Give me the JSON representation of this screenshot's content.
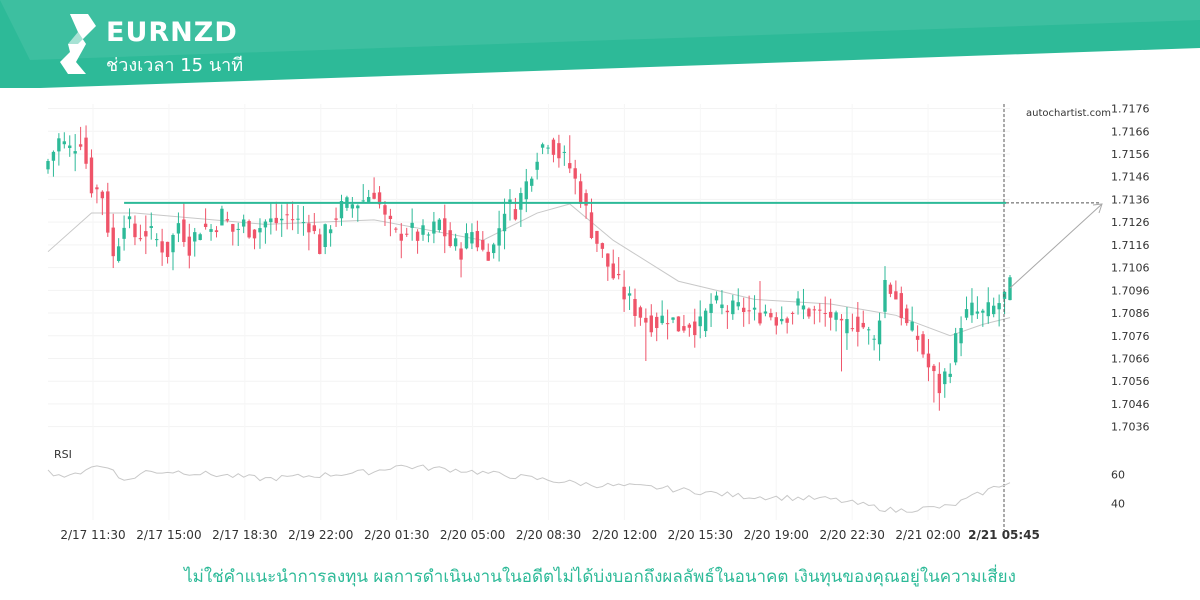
{
  "header": {
    "symbol": "EURNZD",
    "interval_label": "ช่วงเวลา 15 นาที",
    "band_color": "#2dba98"
  },
  "watermark": "autochartist.com",
  "disclaimer": "ไม่ใช่คำแนะนำการลงทุน ผลการดำเนินงานในอดีตไม่ได้บ่งบอกถึงผลลัพธ์ในอนาคต เงินทุนของคุณอยู่ในความเสี่ยง",
  "colors": {
    "up": "#2dba98",
    "down": "#ef5469",
    "level_line": "#2dba98",
    "moving_average": "#c8c8c8",
    "rsi": "#c8c8c8",
    "projection": "#a8a8a8"
  },
  "chart_data": {
    "type": "candlestick",
    "ylim": [
      1.7031,
      1.7178
    ],
    "y_ticks": [
      "1.7176",
      "1.7166",
      "1.7156",
      "1.7146",
      "1.7136",
      "1.7126",
      "1.7116",
      "1.7106",
      "1.7096",
      "1.7086",
      "1.7076",
      "1.7066",
      "1.7056",
      "1.7046",
      "1.7036"
    ],
    "x_ticks": [
      "2/17 11:30",
      "2/17 15:00",
      "2/17 18:30",
      "2/19 22:00",
      "2/20 01:30",
      "2/20 05:00",
      "2/20 08:30",
      "2/20 12:00",
      "2/20 15:30",
      "2/20 19:00",
      "2/20 22:30",
      "2/21 02:00",
      "2/21 05:45"
    ],
    "x_tick_bold": "2/21 05:45",
    "resistance_level": 1.71345,
    "projection_target": 1.71345,
    "rsi_label": "RSI",
    "rsi_ticks": [
      "60",
      "40"
    ],
    "price_path": [
      [
        0,
        1.7153
      ],
      [
        2,
        1.7162
      ],
      [
        4,
        1.7158
      ],
      [
        6,
        1.7163
      ],
      [
        8,
        1.7142
      ],
      [
        10,
        1.7138
      ],
      [
        12,
        1.711
      ],
      [
        14,
        1.7128
      ],
      [
        16,
        1.712
      ],
      [
        18,
        1.7122
      ],
      [
        20,
        1.7118
      ],
      [
        22,
        1.7113
      ],
      [
        24,
        1.7126
      ],
      [
        26,
        1.7116
      ],
      [
        28,
        1.7124
      ],
      [
        30,
        1.7123
      ],
      [
        32,
        1.7129
      ],
      [
        34,
        1.7122
      ],
      [
        36,
        1.7125
      ],
      [
        38,
        1.7122
      ],
      [
        40,
        1.7126
      ],
      [
        42,
        1.7126
      ],
      [
        44,
        1.7129
      ],
      [
        46,
        1.7126
      ],
      [
        48,
        1.7126
      ],
      [
        50,
        1.7115
      ],
      [
        52,
        1.7126
      ],
      [
        54,
        1.7132
      ],
      [
        56,
        1.7134
      ],
      [
        58,
        1.7136
      ],
      [
        60,
        1.714
      ],
      [
        62,
        1.7127
      ],
      [
        64,
        1.712
      ],
      [
        66,
        1.7123
      ],
      [
        68,
        1.712
      ],
      [
        70,
        1.712
      ],
      [
        72,
        1.7126
      ],
      [
        74,
        1.7116
      ],
      [
        76,
        1.7114
      ],
      [
        78,
        1.7122
      ],
      [
        80,
        1.7113
      ],
      [
        82,
        1.7115
      ],
      [
        84,
        1.7133
      ],
      [
        86,
        1.7132
      ],
      [
        88,
        1.7143
      ],
      [
        90,
        1.7157
      ],
      [
        92,
        1.7163
      ],
      [
        94,
        1.7156
      ],
      [
        96,
        1.715
      ],
      [
        98,
        1.7138
      ],
      [
        100,
        1.7123
      ],
      [
        102,
        1.7112
      ],
      [
        104,
        1.7102
      ],
      [
        106,
        1.7094
      ],
      [
        108,
        1.7088
      ],
      [
        110,
        1.7083
      ],
      [
        112,
        1.7082
      ],
      [
        114,
        1.7085
      ],
      [
        116,
        1.708
      ],
      [
        118,
        1.7082
      ],
      [
        120,
        1.708
      ],
      [
        122,
        1.709
      ],
      [
        124,
        1.7088
      ],
      [
        126,
        1.7087
      ],
      [
        128,
        1.7088
      ],
      [
        130,
        1.7085
      ],
      [
        132,
        1.7087
      ],
      [
        134,
        1.7084
      ],
      [
        136,
        1.7086
      ],
      [
        138,
        1.7089
      ],
      [
        140,
        1.7087
      ],
      [
        142,
        1.7085
      ],
      [
        144,
        1.7085
      ],
      [
        146,
        1.7078
      ],
      [
        148,
        1.7083
      ],
      [
        150,
        1.708
      ],
      [
        152,
        1.7073
      ],
      [
        154,
        1.71
      ],
      [
        156,
        1.7093
      ],
      [
        158,
        1.708
      ],
      [
        160,
        1.7075
      ],
      [
        162,
        1.7062
      ],
      [
        164,
        1.7053
      ],
      [
        166,
        1.7064
      ],
      [
        168,
        1.7083
      ],
      [
        170,
        1.7087
      ],
      [
        172,
        1.7085
      ],
      [
        174,
        1.7088
      ],
      [
        176,
        1.7093
      ],
      [
        177,
        1.7097
      ]
    ],
    "moving_average_path": [
      [
        0,
        1.7113
      ],
      [
        8,
        1.713
      ],
      [
        16,
        1.713
      ],
      [
        40,
        1.7125
      ],
      [
        60,
        1.7127
      ],
      [
        80,
        1.7118
      ],
      [
        90,
        1.713
      ],
      [
        96,
        1.7134
      ],
      [
        104,
        1.7118
      ],
      [
        116,
        1.71
      ],
      [
        130,
        1.7092
      ],
      [
        144,
        1.709
      ],
      [
        156,
        1.7085
      ],
      [
        166,
        1.7076
      ],
      [
        172,
        1.7081
      ],
      [
        177,
        1.7084
      ]
    ],
    "rsi_path": [
      [
        0,
        62
      ],
      [
        4,
        58
      ],
      [
        8,
        66
      ],
      [
        12,
        64
      ],
      [
        14,
        55
      ],
      [
        18,
        62
      ],
      [
        24,
        62
      ],
      [
        40,
        57
      ],
      [
        60,
        62
      ],
      [
        64,
        66
      ],
      [
        76,
        63
      ],
      [
        90,
        57
      ],
      [
        100,
        53
      ],
      [
        112,
        51
      ],
      [
        128,
        45
      ],
      [
        144,
        43
      ],
      [
        156,
        35
      ],
      [
        166,
        38
      ],
      [
        176,
        54
      ]
    ],
    "projection_from": [
      177,
      1.7097
    ],
    "projection_to": [
      193,
      1.7134
    ]
  }
}
